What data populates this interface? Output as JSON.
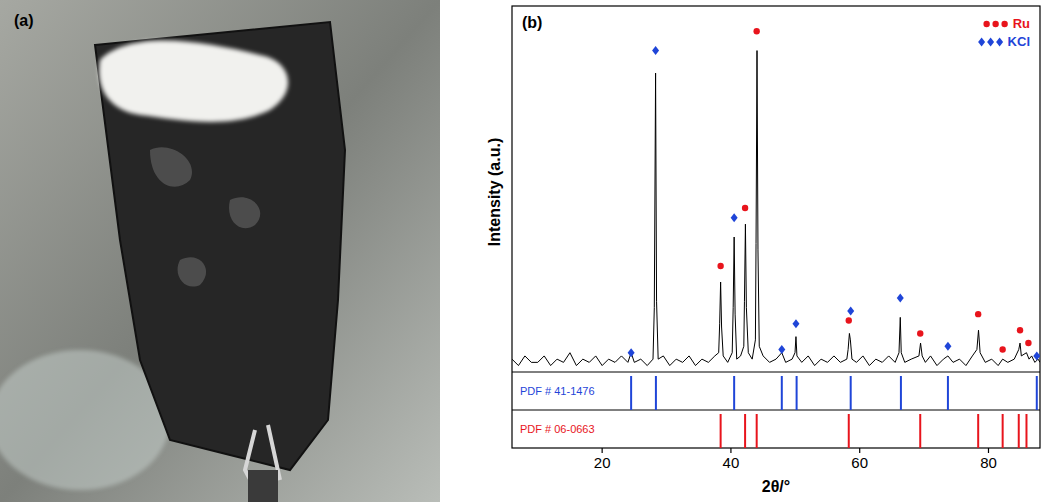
{
  "photo": {
    "label": "(a)"
  },
  "chart_data": {
    "type": "line",
    "panel_label": "(b)",
    "x_label": "2θ/°",
    "y_label": "Intensity (a.u.)",
    "xlim": [
      6,
      88
    ],
    "xticks": [
      20,
      40,
      60,
      80
    ],
    "ylim": [
      0,
      112
    ],
    "tick_labels": "x",
    "grid": false,
    "legend": "top-right",
    "series": [
      {
        "type": "line",
        "color": "#000000",
        "x": [
          6,
          7,
          8,
          9,
          10,
          11,
          12,
          13,
          14,
          15,
          16,
          17,
          18,
          19,
          20,
          21,
          22,
          23,
          24,
          24.5,
          25,
          26,
          27,
          27.9,
          28.1,
          28.3,
          28.45,
          28.7,
          29.5,
          30.5,
          31.5,
          32.5,
          33.5,
          34.5,
          35.5,
          36.5,
          37.5,
          38.1,
          38.25,
          38.4,
          38.55,
          38.8,
          39.5,
          40.2,
          40.35,
          40.5,
          40.65,
          40.9,
          41.5,
          42.0,
          42.1,
          42.25,
          42.4,
          42.7,
          43.3,
          43.8,
          43.9,
          44.05,
          44.2,
          44.4,
          45,
          46,
          47,
          47.9,
          48.5,
          49.5,
          49.95,
          50.1,
          50.25,
          51,
          52,
          53,
          54,
          55,
          56,
          57,
          58,
          58.2,
          58.4,
          58.55,
          58.8,
          59.5,
          60.5,
          61.5,
          62.5,
          63.5,
          64.5,
          65.5,
          66.1,
          66.3,
          66.45,
          67,
          68,
          69.2,
          69.45,
          69.7,
          70.2,
          71,
          72,
          73,
          73.7,
          74.5,
          75.5,
          76.5,
          77.5,
          78.2,
          78.45,
          78.7,
          79.5,
          80.5,
          81.5,
          82.2,
          83,
          84,
          84.7,
          84.9,
          85.1,
          85.9,
          86.3,
          86.7,
          87.2,
          87.7,
          88
        ],
        "values": [
          4,
          2,
          5,
          3,
          3,
          5,
          2,
          4,
          3,
          6,
          2,
          4,
          3,
          5,
          2,
          4,
          3,
          5,
          3,
          6,
          3,
          4,
          2,
          4,
          20,
          93,
          22,
          4,
          5,
          2,
          4,
          3,
          5,
          2,
          4,
          3,
          5,
          6,
          15,
          28,
          14,
          5,
          3,
          6,
          20,
          42,
          18,
          4,
          5,
          8,
          22,
          46,
          20,
          6,
          4,
          10,
          40,
          100,
          38,
          8,
          5,
          3,
          4,
          6,
          3,
          4,
          6,
          11,
          5,
          3,
          5,
          2,
          4,
          3,
          5,
          3,
          4,
          7,
          12,
          10,
          4,
          3,
          5,
          2,
          4,
          3,
          5,
          3,
          6,
          17,
          6,
          3,
          4,
          5,
          9,
          5,
          3,
          5,
          2,
          4,
          5,
          3,
          4,
          2,
          5,
          7,
          13,
          6,
          3,
          4,
          2,
          4,
          3,
          4,
          7,
          9,
          5,
          6,
          4,
          5,
          3,
          4,
          3
        ]
      },
      {
        "name": "Ru",
        "type": "scatter",
        "marker": "circle",
        "color": "#e8141c",
        "x": [
          38.4,
          42.2,
          44.0,
          58.3,
          69.4,
          78.4,
          82.2,
          84.9,
          86.2
        ],
        "values": [
          33,
          51,
          106,
          16,
          12,
          18,
          7,
          13,
          9
        ]
      },
      {
        "name": "KCl",
        "type": "scatter",
        "marker": "diamond",
        "color": "#1f45d8",
        "x": [
          24.5,
          28.3,
          40.5,
          47.9,
          50.1,
          58.6,
          66.3,
          73.7,
          87.5
        ],
        "values": [
          6,
          100,
          48,
          7,
          15,
          19,
          23,
          8,
          5
        ]
      }
    ],
    "reference_patterns": [
      {
        "label": "PDF # 41-1476",
        "color": "#1f45d8",
        "x": [
          24.5,
          28.35,
          40.5,
          47.9,
          50.2,
          58.6,
          66.4,
          73.7,
          87.5
        ]
      },
      {
        "label": "PDF # 06-0663",
        "color": "#e8141c",
        "x": [
          38.4,
          42.2,
          44.0,
          58.3,
          69.4,
          78.4,
          82.2,
          84.7,
          85.9
        ]
      }
    ]
  }
}
